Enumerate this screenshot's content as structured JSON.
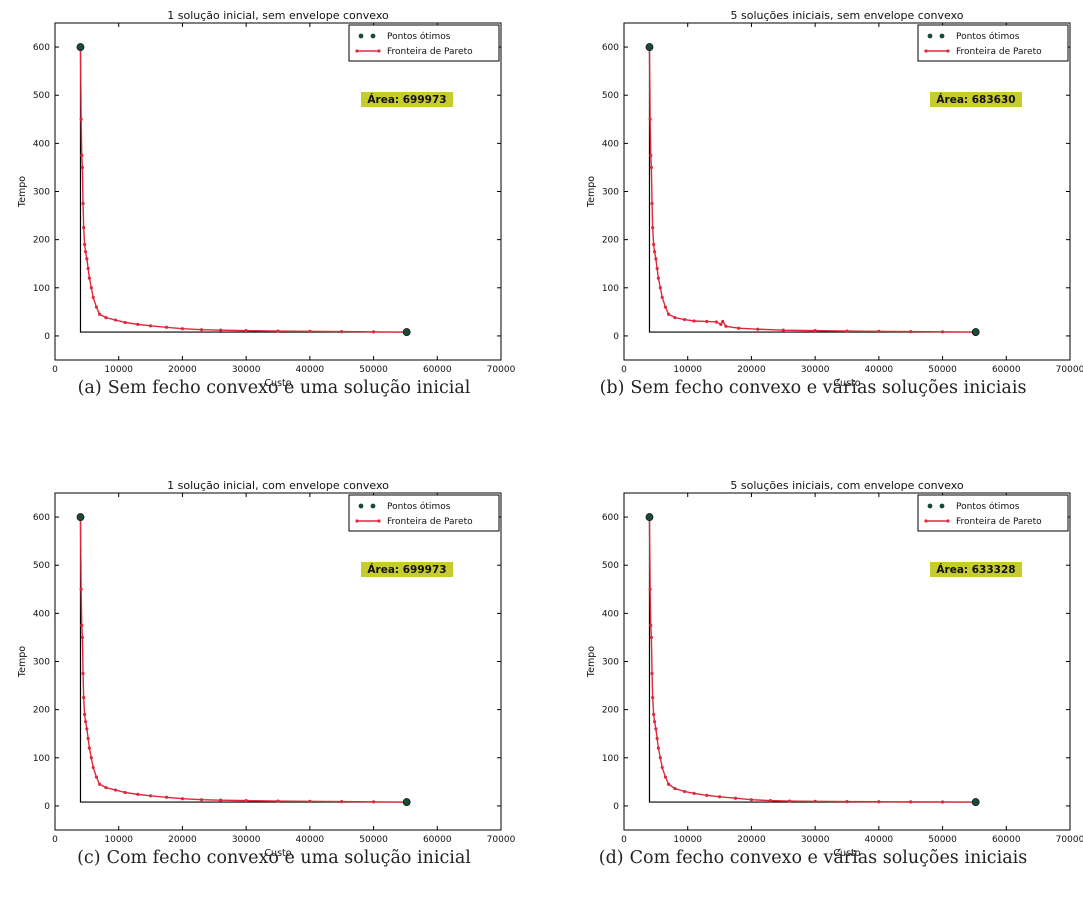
{
  "colors": {
    "optimal": "#1a4a3a",
    "pareto": "#e0283c",
    "area_bg": "#c7cc2e",
    "axes": "#000000"
  },
  "captions": [
    {
      "label": "(a)",
      "text": "Sem fecho convexo e uma solução inicial"
    },
    {
      "label": "(b)",
      "text": "Sem fecho convexo e várias soluções iniciais"
    },
    {
      "label": "(c)",
      "text": "Com fecho convexo e uma solução inicial"
    },
    {
      "label": "(d)",
      "text": "Com fecho convexo e várias soluções iniciais"
    }
  ],
  "chart_data": [
    {
      "type": "line",
      "title": "1 solução inicial, sem envelope convexo",
      "xlabel": "Custo",
      "ylabel": "Tempo",
      "xlim": [
        0,
        70000
      ],
      "ylim": [
        -50,
        650
      ],
      "xticks": [
        0,
        10000,
        20000,
        30000,
        40000,
        50000,
        60000,
        70000
      ],
      "yticks": [
        0,
        100,
        200,
        300,
        400,
        500,
        600
      ],
      "xtick_labels": [
        "0",
        "10000",
        "20000",
        "30000",
        "40000",
        "50000",
        "60000",
        "70000"
      ],
      "ytick_labels": [
        "0",
        "100",
        "200",
        "300",
        "400",
        "500",
        "600"
      ],
      "legend": [
        "Pontos ótimos",
        "Fronteira de Pareto"
      ],
      "legend_position": "top-right",
      "annotation": "Área: 699973",
      "optimal_points": {
        "x": [
          4000,
          55200
        ],
        "y": [
          600,
          8
        ]
      },
      "series": [
        {
          "name": "Fronteira de Pareto",
          "x": [
            4000,
            4100,
            4200,
            4300,
            4400,
            4500,
            4650,
            4800,
            5000,
            5200,
            5400,
            5700,
            6000,
            6500,
            7000,
            8000,
            9500,
            11000,
            13000,
            15000,
            17500,
            20000,
            23000,
            26000,
            30000,
            35000,
            40000,
            45000,
            50000,
            55200
          ],
          "y": [
            600,
            450,
            375,
            350,
            275,
            225,
            190,
            175,
            160,
            140,
            120,
            100,
            80,
            60,
            45,
            38,
            33,
            28,
            24,
            21,
            18,
            15,
            13,
            12,
            11,
            10,
            9.5,
            9,
            8.5,
            8
          ]
        }
      ]
    },
    {
      "type": "line",
      "title": "5 soluções iniciais, sem envelope convexo",
      "xlabel": "Custo",
      "ylabel": "Tempo",
      "xlim": [
        0,
        70000
      ],
      "ylim": [
        -50,
        650
      ],
      "xticks": [
        0,
        10000,
        20000,
        30000,
        40000,
        50000,
        60000,
        70000
      ],
      "yticks": [
        0,
        100,
        200,
        300,
        400,
        500,
        600
      ],
      "xtick_labels": [
        "0",
        "10000",
        "20000",
        "30000",
        "40000",
        "50000",
        "60000",
        "70000"
      ],
      "ytick_labels": [
        "0",
        "100",
        "200",
        "300",
        "400",
        "500",
        "600"
      ],
      "legend": [
        "Pontos ótimos",
        "Fronteira de Pareto"
      ],
      "legend_position": "top-right",
      "annotation": "Área: 683630",
      "optimal_points": {
        "x": [
          4000,
          55200
        ],
        "y": [
          600,
          8
        ]
      },
      "series": [
        {
          "name": "Fronteira de Pareto",
          "x": [
            4000,
            4100,
            4200,
            4300,
            4400,
            4500,
            4650,
            4800,
            5000,
            5200,
            5400,
            5700,
            6000,
            6500,
            7000,
            8000,
            9500,
            11000,
            13000,
            14500,
            15200,
            15500,
            16000,
            18000,
            21000,
            25000,
            30000,
            35000,
            40000,
            45000,
            50000,
            55200
          ],
          "y": [
            600,
            450,
            375,
            350,
            275,
            225,
            190,
            175,
            160,
            140,
            120,
            100,
            80,
            60,
            45,
            38,
            34,
            31,
            30,
            29,
            24,
            30,
            20,
            16,
            14,
            12,
            11,
            10,
            9.5,
            9,
            8.5,
            8
          ]
        }
      ]
    },
    {
      "type": "line",
      "title": "1 solução inicial, com envelope convexo",
      "xlabel": "Custo",
      "ylabel": "Tempo",
      "xlim": [
        0,
        70000
      ],
      "ylim": [
        -50,
        650
      ],
      "xticks": [
        0,
        10000,
        20000,
        30000,
        40000,
        50000,
        60000,
        70000
      ],
      "yticks": [
        0,
        100,
        200,
        300,
        400,
        500,
        600
      ],
      "xtick_labels": [
        "0",
        "10000",
        "20000",
        "30000",
        "40000",
        "50000",
        "60000",
        "70000"
      ],
      "ytick_labels": [
        "0",
        "100",
        "200",
        "300",
        "400",
        "500",
        "600"
      ],
      "legend": [
        "Pontos ótimos",
        "Fronteira de Pareto"
      ],
      "legend_position": "top-right",
      "annotation": "Área: 699973",
      "optimal_points": {
        "x": [
          4000,
          55200
        ],
        "y": [
          600,
          8
        ]
      },
      "series": [
        {
          "name": "Fronteira de Pareto",
          "x": [
            4000,
            4100,
            4200,
            4300,
            4400,
            4500,
            4650,
            4800,
            5000,
            5200,
            5400,
            5700,
            6000,
            6500,
            7000,
            8000,
            9500,
            11000,
            13000,
            15000,
            17500,
            20000,
            23000,
            26000,
            30000,
            35000,
            40000,
            45000,
            50000,
            55200
          ],
          "y": [
            600,
            450,
            375,
            350,
            275,
            225,
            190,
            175,
            160,
            140,
            120,
            100,
            80,
            60,
            45,
            38,
            33,
            28,
            24,
            21,
            18,
            15,
            13,
            12,
            11,
            10,
            9.5,
            9,
            8.5,
            8
          ]
        }
      ]
    },
    {
      "type": "line",
      "title": "5 soluções iniciais, com envelope convexo",
      "xlabel": "Custo",
      "ylabel": "Tempo",
      "xlim": [
        0,
        70000
      ],
      "ylim": [
        -50,
        650
      ],
      "xticks": [
        0,
        10000,
        20000,
        30000,
        40000,
        50000,
        60000,
        70000
      ],
      "yticks": [
        0,
        100,
        200,
        300,
        400,
        500,
        600
      ],
      "xtick_labels": [
        "0",
        "10000",
        "20000",
        "30000",
        "40000",
        "50000",
        "60000",
        "70000"
      ],
      "ytick_labels": [
        "0",
        "100",
        "200",
        "300",
        "400",
        "500",
        "600"
      ],
      "legend": [
        "Pontos ótimos",
        "Fronteira de Pareto"
      ],
      "legend_position": "top-right",
      "annotation": "Área: 633328",
      "optimal_points": {
        "x": [
          4000,
          55200
        ],
        "y": [
          600,
          8
        ]
      },
      "series": [
        {
          "name": "Fronteira de Pareto",
          "x": [
            4000,
            4100,
            4200,
            4300,
            4400,
            4500,
            4650,
            4800,
            5000,
            5200,
            5400,
            5700,
            6000,
            6500,
            7000,
            8000,
            9500,
            11000,
            13000,
            15000,
            17500,
            20000,
            23000,
            26000,
            30000,
            35000,
            40000,
            45000,
            50000,
            55200
          ],
          "y": [
            600,
            450,
            375,
            350,
            275,
            225,
            190,
            175,
            160,
            140,
            120,
            100,
            80,
            60,
            45,
            36,
            30,
            26,
            22,
            19,
            16,
            13,
            11,
            10,
            9.5,
            9,
            8.7,
            8.4,
            8.2,
            8
          ]
        }
      ]
    }
  ]
}
